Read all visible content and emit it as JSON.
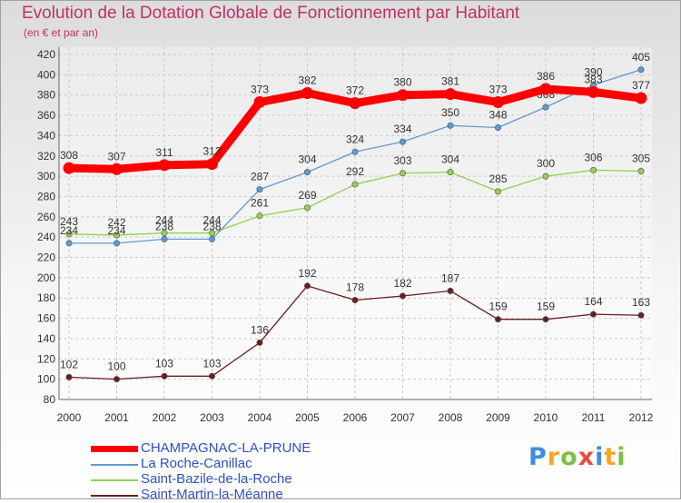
{
  "chart_data": {
    "type": "line",
    "title": "Evolution de la Dotation Globale de Fonctionnement par Habitant",
    "subtitle": "(en € et par an)",
    "xlabel": "",
    "ylabel": "",
    "ylim": [
      80,
      420
    ],
    "ytick_step": 20,
    "grid": true,
    "legend_position": "bottom-left",
    "categories": [
      "2000",
      "2001",
      "2002",
      "2003",
      "2004",
      "2005",
      "2006",
      "2007",
      "2008",
      "2009",
      "2010",
      "2011",
      "2012"
    ],
    "series": [
      {
        "name": "CHAMPAGNAC-LA-PRUNE",
        "color": "#ff0000",
        "values": [
          308,
          307,
          311,
          312,
          373,
          382,
          372,
          380,
          381,
          373,
          386,
          383,
          377
        ]
      },
      {
        "name": "La Roche-Canillac",
        "color": "#5b9bd5",
        "values": [
          234,
          234,
          238,
          238,
          287,
          304,
          324,
          334,
          350,
          348,
          368,
          390,
          405
        ]
      },
      {
        "name": "Saint-Bazile-de-la-Roche",
        "color": "#92d050",
        "values": [
          243,
          242,
          244,
          244,
          261,
          269,
          292,
          303,
          304,
          285,
          300,
          306,
          305
        ]
      },
      {
        "name": "Saint-Martin-la-Méanne",
        "color": "#6b1e1e",
        "values": [
          102,
          100,
          103,
          103,
          136,
          192,
          178,
          182,
          187,
          159,
          159,
          164,
          163
        ]
      }
    ]
  },
  "logo": {
    "letters": [
      "P",
      "r",
      "o",
      "x",
      "i",
      "t",
      "i"
    ],
    "colors": [
      "#3c8dde",
      "#f5a623",
      "#7ac143",
      "#e94b3c",
      "#3c8dde",
      "#f5a623",
      "#7ac143"
    ]
  }
}
